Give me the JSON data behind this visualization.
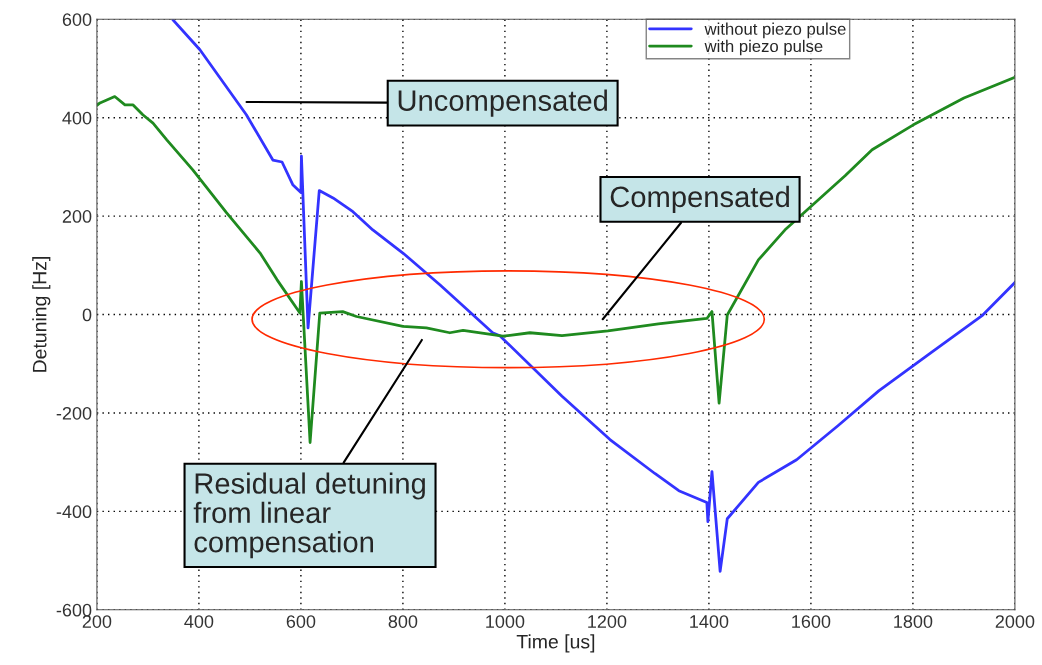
{
  "chart_data": {
    "type": "line",
    "xlabel": "Time [us]",
    "ylabel": "Detuning [Hz]",
    "xlim": [
      200,
      2000
    ],
    "xticks": [
      200,
      400,
      600,
      800,
      1000,
      1200,
      1400,
      1600,
      1800,
      2000
    ],
    "ylim": [
      -600,
      600
    ],
    "yticks": [
      -600,
      -400,
      -200,
      0,
      200,
      400,
      600
    ],
    "grid": true,
    "legend": "top right",
    "line_style": "solid",
    "marker": "none",
    "series": [
      {
        "name": "without piezo pulse",
        "color": "#3333ff",
        "x": [
          349,
          402,
          493,
          545,
          563,
          584,
          600,
          601,
          614,
          636,
          663,
          702,
          741,
          800,
          873,
          976,
          990,
          1112,
          1206,
          1294,
          1341,
          1396,
          1398,
          1406,
          1422,
          1436,
          1497,
          1572,
          1653,
          1733,
          1835,
          1937,
          2000
        ],
        "values": [
          599,
          538,
          406,
          314,
          310,
          264,
          248,
          322,
          -27,
          252,
          237,
          209,
          172,
          125,
          60,
          -37,
          -43,
          -166,
          -254,
          -323,
          -358,
          -382,
          -421,
          -319,
          -522,
          -415,
          -341,
          -295,
          -226,
          -155,
          -78,
          -1,
          65
        ]
      },
      {
        "name": "with piezo pulse",
        "color": "#1f8a1f",
        "x": [
          200,
          206,
          235,
          255,
          271,
          290,
          310,
          337,
          388,
          454,
          520,
          553,
          598,
          601,
          618,
          637,
          682,
          709,
          800,
          846,
          892,
          918,
          996,
          1049,
          1112,
          1202,
          1301,
          1396,
          1406,
          1420,
          1436,
          1497,
          1551,
          1667,
          1720,
          1800,
          1900,
          2000
        ],
        "values": [
          425,
          430,
          443,
          426,
          426,
          406,
          389,
          355,
          294,
          207,
          125,
          71,
          3,
          67,
          -260,
          3,
          6,
          -4,
          -24,
          -27,
          -37,
          -32,
          -44,
          -37,
          -43,
          -33,
          -19,
          -8,
          6,
          -180,
          -1,
          111,
          174,
          282,
          335,
          385,
          440,
          482
        ]
      }
    ],
    "annotations": [
      "Uncompensated",
      "Compensated",
      "Residual detuning\nfrom linear\ncompensation"
    ]
  }
}
